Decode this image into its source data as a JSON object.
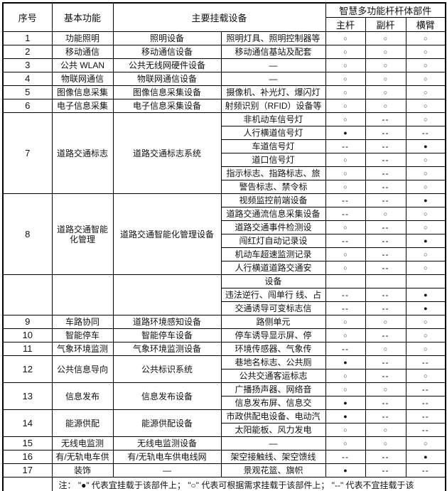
{
  "table": {
    "header": {
      "serial": "序号",
      "basic_function": "基本功能",
      "main_equipment": "主要挂载设备",
      "pole_parts": "智慧多功能杆杆体部件",
      "main_pole": "主杆",
      "sub_pole": "副杆",
      "cross_arm": "横臂"
    },
    "marks": {
      "suitable": "●",
      "on_demand": "○",
      "not_suitable": "--"
    },
    "blocks": [
      {
        "no": "1",
        "function": "功能照明",
        "system": "照明设备",
        "rows": [
          {
            "device": "照明灯具、照明控制器等",
            "marks": [
              "○",
              "○",
              "○"
            ]
          }
        ]
      },
      {
        "no": "2",
        "function": "移动通信",
        "system": "移动通信设备",
        "rows": [
          {
            "device": "移动通信基站及配套",
            "marks": [
              "○",
              "○",
              "○"
            ]
          }
        ]
      },
      {
        "no": "3",
        "function": "公共 WLAN",
        "system": "公共无线网硬件设备",
        "rows": [
          {
            "device": "—",
            "marks": [
              "○",
              "○",
              "○"
            ]
          }
        ]
      },
      {
        "no": "4",
        "function": "物联网通信",
        "system": "物联网通信设备",
        "rows": [
          {
            "device": "—",
            "marks": [
              "○",
              "○",
              "○"
            ]
          }
        ]
      },
      {
        "no": "5",
        "function": "图像信息采集",
        "system": "图像信息采集设备",
        "rows": [
          {
            "device": "摄像机、补光灯、爆闪灯",
            "marks": [
              "○",
              "○",
              "○"
            ]
          }
        ]
      },
      {
        "no": "6",
        "function": "电子信息采集",
        "system": "电子信息采集设备",
        "rows": [
          {
            "device": "射频识别（RFID）设备等",
            "marks": [
              "○",
              "○",
              "○"
            ]
          }
        ]
      },
      {
        "no": "7",
        "function": "道路交通标志",
        "system": "道路交通标志系统",
        "rows": [
          {
            "device": "非机动车信号灯",
            "marks": [
              "○",
              "--",
              "○"
            ]
          },
          {
            "device": "人行横道信号灯",
            "marks": [
              "●",
              "--",
              "--"
            ]
          },
          {
            "device": "车道信号灯",
            "marks": [
              "--",
              "--",
              "●"
            ]
          },
          {
            "device": "道口信号灯",
            "marks": [
              "○",
              "--",
              "○"
            ]
          },
          {
            "device": "指示标志、指路标志、旅",
            "marks": [
              "○",
              "--",
              "○"
            ]
          },
          {
            "device": "警告标志、禁令标",
            "marks": [
              "○",
              "--",
              "○"
            ]
          }
        ]
      },
      {
        "no": "8",
        "function": "道路交通智能化管理",
        "system": "道路交通智能化管理设备",
        "rows": [
          {
            "device": "视频监控前端设备",
            "marks": [
              "--",
              "--",
              "●"
            ]
          },
          {
            "device": "道路交通流信息采集设备",
            "marks": [
              "--",
              "○",
              "○"
            ]
          },
          {
            "device": "道路交通事件检测设",
            "marks": [
              "○",
              "--",
              "○"
            ]
          },
          {
            "device": "闯红灯自动记录设",
            "marks": [
              "--",
              "--",
              "●"
            ]
          },
          {
            "device": "机动车超速监测记录",
            "marks": [
              "○",
              "--",
              "○"
            ]
          },
          {
            "device": "人行横道道路交通安",
            "marks": [
              "○",
              "--",
              "○"
            ]
          }
        ]
      },
      {
        "no": "",
        "function": "",
        "system": "",
        "rows": [
          {
            "device": "设备",
            "marks": [
              "",
              "",
              ""
            ]
          },
          {
            "device": "违法逆行、闯单行 线、占",
            "marks": [
              "--",
              "--",
              "●"
            ]
          },
          {
            "device": "交通诱导可变标志信",
            "marks": [
              "--",
              "--",
              "●"
            ]
          }
        ]
      },
      {
        "no": "9",
        "function": "车路协同",
        "system": "道路环境感知设备",
        "rows": [
          {
            "device": "路侧单元",
            "marks": [
              "○",
              "○",
              "○"
            ]
          }
        ]
      },
      {
        "no": "10",
        "function": "智能停车",
        "system": "智能停车设备",
        "rows": [
          {
            "device": "停车诱导显示屏、停",
            "marks": [
              "○",
              "--",
              "○"
            ]
          }
        ]
      },
      {
        "no": "11",
        "function": "气象环境监测",
        "system": "气象环境监测设备",
        "rows": [
          {
            "device": "环境传感器、气象传",
            "marks": [
              "--",
              "○",
              "○"
            ]
          }
        ]
      },
      {
        "no": "12",
        "function": "公共信息导向",
        "system": "公共标识系统",
        "rows": [
          {
            "device": "巷地名标志、公共厕",
            "marks": [
              "●",
              "--",
              "--"
            ]
          },
          {
            "device": "公共交通客运标志",
            "marks": [
              "○",
              "--",
              "○"
            ]
          }
        ]
      },
      {
        "no": "13",
        "function": "信息发布",
        "system": "信息发布设备",
        "rows": [
          {
            "device": "广播扬声器、网络音",
            "marks": [
              "○",
              "○",
              "--"
            ]
          },
          {
            "device": "信息发布屏、信息交",
            "marks": [
              "●",
              "--",
              "--"
            ]
          }
        ]
      },
      {
        "no": "14",
        "function": "能源供配",
        "system": "能源供配设备",
        "rows": [
          {
            "device": "市政供配电设备、电动汽",
            "marks": [
              "●",
              "--",
              "--"
            ]
          },
          {
            "device": "太阳能板、风力发电",
            "marks": [
              "○",
              "○",
              "--"
            ]
          }
        ]
      },
      {
        "no": "15",
        "function": "无线电监测",
        "system": "无线电监测设备",
        "rows": [
          {
            "device": "—",
            "marks": [
              "○",
              "○",
              "○"
            ]
          }
        ]
      },
      {
        "no": "16",
        "function": "有/无轨电车供",
        "system": "有/无轨电车供电线网",
        "rows": [
          {
            "device": "架空接触线、架空馈线",
            "marks": [
              "--",
              "--",
              "●"
            ]
          }
        ]
      },
      {
        "no": "17",
        "function": "装饰",
        "system": "—",
        "rows": [
          {
            "device": "景观花篮、旗帜",
            "marks": [
              "●",
              "--",
              "--"
            ]
          }
        ]
      }
    ],
    "note": "注： \"●\" 代表宜挂载于该部件上；  \"○\" 代表可根据需求挂载于该部件上；  \"--\" 代表不宜挂载于该"
  }
}
